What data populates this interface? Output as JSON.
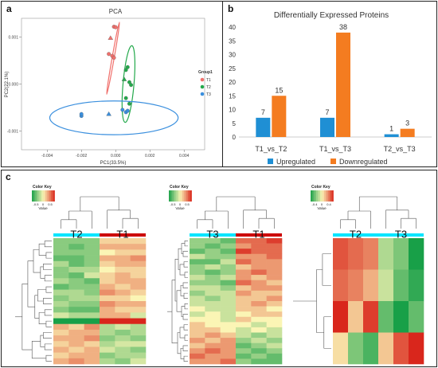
{
  "panel_labels": {
    "a": "a",
    "b": "b",
    "c": "c"
  },
  "colors": {
    "T1": "#f0706c",
    "T2": "#23a94b",
    "T3": "#3a8fde",
    "upregulated": "#1f8fd4",
    "downregulated": "#f47c20",
    "heat_red": "#d9261c",
    "heat_yellow": "#fbf5b5",
    "heat_green": "#18a048",
    "bar_T1": "#cc0000",
    "bar_T2": "#00e5ff",
    "bar_T3": "#00e5ff"
  },
  "chart_data": [
    {
      "type": "scatter",
      "title": "PCA",
      "xlabel": "PC1(33.5%)",
      "ylabel": "PC2(22.1%)",
      "xlim": [
        -0.0055,
        0.0052
      ],
      "ylim": [
        -0.0014,
        0.0014
      ],
      "x_ticks": [
        "-0.004",
        "-0.002",
        "0.000",
        "0.002",
        "0.004"
      ],
      "y_ticks": [
        "0.001",
        "0.000",
        "-0.001"
      ],
      "legend_title": "Group1",
      "legend_position": "right",
      "series": [
        {
          "name": "T1",
          "marker": "circle/triangle",
          "points": [
            [
              -0.0001,
              0.00122
            ],
            [
              0.0,
              0.00121
            ],
            [
              -0.0003,
              0.00098
            ],
            [
              -0.0004,
              0.00064
            ],
            [
              -0.0002,
              0.0006
            ],
            [
              -0.0001,
              0.00056
            ]
          ]
        },
        {
          "name": "T2",
          "marker": "circle/triangle",
          "points": [
            [
              0.0007,
              0.00036
            ],
            [
              0.0006,
              0.0003
            ],
            [
              0.0005,
              0.0001
            ],
            [
              0.0008,
              4e-05
            ],
            [
              0.0009,
              -2e-05
            ],
            [
              0.0006,
              -0.0003
            ],
            [
              0.0008,
              -0.00042
            ]
          ]
        },
        {
          "name": "T3",
          "marker": "circle/triangle",
          "points": [
            [
              -0.002,
              -0.00068
            ],
            [
              -0.002,
              -0.00064
            ],
            [
              -0.0004,
              -0.00064
            ],
            [
              0.0004,
              -0.00055
            ],
            [
              0.0006,
              -0.0006
            ],
            [
              0.0007,
              -0.00057
            ]
          ]
        }
      ],
      "ellipses": [
        {
          "group": "T1",
          "cx": -0.00015,
          "cy": 0.00055,
          "rx": 6e-05,
          "ry": 0.00078,
          "angle_deg": 10
        },
        {
          "group": "T2",
          "cx": 0.00075,
          "cy": 0.0,
          "rx": 0.00032,
          "ry": 0.00082,
          "angle_deg": 5
        },
        {
          "group": "T3",
          "cx": -0.0001,
          "cy": -0.00072,
          "rx": 0.00375,
          "ry": 0.00036,
          "angle_deg": 0
        }
      ]
    },
    {
      "type": "bar",
      "title": "Differentially Expressed Proteins",
      "categories": [
        "T1_vs_T2",
        "T1_vs_T3",
        "T2_vs_T3"
      ],
      "series": [
        {
          "name": "Upregulated",
          "values": [
            7,
            7,
            1
          ]
        },
        {
          "name": "Downregulated",
          "values": [
            15,
            38,
            3
          ]
        }
      ],
      "ylim": [
        0,
        40
      ],
      "y_ticks": [
        0,
        5,
        10,
        15,
        20,
        25,
        30,
        35,
        40
      ],
      "xlabel": "",
      "ylabel": "",
      "legend_position": "bottom"
    },
    {
      "type": "heatmap",
      "color_key": {
        "title": "Color Key",
        "ticks": [
          "-0.5",
          "0",
          "0.5"
        ],
        "label": "Value"
      },
      "group_labels": [
        "T2",
        "T1"
      ],
      "columns": 6,
      "values": [
        [
          -0.3,
          -0.3,
          -0.3,
          0.1,
          0.1,
          0.1
        ],
        [
          -0.3,
          -0.4,
          -0.3,
          0.2,
          0.2,
          0.2
        ],
        [
          -0.3,
          -0.3,
          -0.3,
          0.0,
          0.1,
          0.1
        ],
        [
          -0.4,
          -0.4,
          -0.3,
          0.2,
          0.2,
          0.3
        ],
        [
          -0.2,
          -0.4,
          -0.3,
          0.1,
          0.2,
          0.2
        ],
        [
          -0.3,
          -0.2,
          -0.2,
          0.0,
          0.1,
          0.1
        ],
        [
          -0.3,
          -0.4,
          -0.1,
          0.1,
          0.2,
          0.1
        ],
        [
          -0.2,
          -0.3,
          -0.4,
          0.1,
          0.2,
          0.2
        ],
        [
          -0.4,
          -0.3,
          -0.3,
          0.2,
          0.1,
          0.2
        ],
        [
          -0.2,
          -0.2,
          -0.3,
          0.3,
          0.2,
          0.1
        ],
        [
          -0.3,
          -0.2,
          -0.2,
          0.1,
          0.1,
          0.0
        ],
        [
          -0.2,
          -0.3,
          -0.3,
          0.3,
          0.2,
          0.2
        ],
        [
          -0.3,
          -0.4,
          -0.4,
          0.2,
          0.1,
          0.1
        ],
        [
          -0.1,
          -0.2,
          -0.2,
          0.2,
          0.2,
          -0.1
        ],
        [
          -0.6,
          -0.6,
          -0.6,
          0.6,
          0.6,
          0.6
        ],
        [
          0.2,
          0.1,
          0.3,
          -0.2,
          -0.1,
          -0.2
        ],
        [
          0.1,
          0.2,
          0.2,
          -0.2,
          -0.3,
          -0.2
        ],
        [
          0.2,
          0.2,
          0.3,
          -0.3,
          -0.2,
          -0.3
        ],
        [
          0.1,
          0.2,
          0.1,
          -0.2,
          -0.1,
          -0.1
        ],
        [
          0.2,
          0.1,
          0.2,
          -0.1,
          -0.2,
          -0.3
        ],
        [
          0.1,
          0.2,
          0.2,
          -0.3,
          -0.2,
          -0.2
        ],
        [
          0.2,
          0.3,
          0.2,
          -0.2,
          -0.3,
          -0.1
        ]
      ]
    },
    {
      "type": "heatmap",
      "color_key": {
        "title": "Color Key",
        "ticks": [
          "-0.5",
          "0",
          "0.5"
        ],
        "label": "Value"
      },
      "group_labels": [
        "T3",
        "T1"
      ],
      "columns": 6,
      "values": [
        [
          -0.2,
          -0.2,
          -0.3,
          0.3,
          0.3,
          0.4
        ],
        [
          -0.2,
          -0.3,
          -0.2,
          0.2,
          0.3,
          0.3
        ],
        [
          -0.3,
          -0.2,
          -0.3,
          0.4,
          0.3,
          0.3
        ],
        [
          -0.1,
          -0.2,
          -0.2,
          0.2,
          0.2,
          0.3
        ],
        [
          -0.3,
          -0.3,
          -0.1,
          0.3,
          0.2,
          0.2
        ],
        [
          -0.2,
          -0.1,
          -0.2,
          0.1,
          0.2,
          0.2
        ],
        [
          -0.2,
          -0.3,
          -0.2,
          0.2,
          0.3,
          0.2
        ],
        [
          -0.1,
          -0.2,
          -0.1,
          0.2,
          0.1,
          0.2
        ],
        [
          -0.2,
          -0.2,
          -0.3,
          0.3,
          0.2,
          0.1
        ],
        [
          -0.1,
          -0.1,
          -0.2,
          0.1,
          0.2,
          0.2
        ],
        [
          -0.2,
          -0.1,
          -0.1,
          0.2,
          0.1,
          0.1
        ],
        [
          -0.1,
          -0.2,
          -0.1,
          0.1,
          0.1,
          0.2
        ],
        [
          -0.1,
          -0.1,
          -0.1,
          0.1,
          0.2,
          0.1
        ],
        [
          0.0,
          -0.1,
          -0.1,
          0.1,
          0.1,
          0.0
        ],
        [
          -0.1,
          0.0,
          -0.1,
          0.0,
          0.1,
          0.1
        ],
        [
          0.0,
          0.0,
          -0.1,
          0.1,
          0.0,
          0.0
        ],
        [
          0.1,
          0.0,
          0.0,
          0.0,
          -0.1,
          0.0
        ],
        [
          0.1,
          0.1,
          0.0,
          -0.1,
          0.0,
          -0.1
        ],
        [
          0.1,
          0.2,
          0.1,
          -0.1,
          -0.2,
          -0.1
        ],
        [
          0.2,
          0.1,
          0.2,
          -0.2,
          -0.1,
          -0.2
        ],
        [
          0.1,
          0.2,
          0.2,
          -0.3,
          -0.2,
          -0.1
        ],
        [
          0.2,
          0.3,
          0.2,
          -0.2,
          -0.3,
          -0.2
        ],
        [
          0.3,
          0.2,
          0.2,
          -0.3,
          -0.2,
          -0.3
        ],
        [
          0.2,
          0.2,
          0.3,
          -0.2,
          -0.3,
          -0.3
        ]
      ]
    },
    {
      "type": "heatmap",
      "color_key": {
        "title": "Color Key",
        "ticks": [
          "-0.4",
          "0",
          "0.4"
        ],
        "label": "Value"
      },
      "group_labels": [
        "T2",
        "T3"
      ],
      "columns": 6,
      "values": [
        [
          0.35,
          0.3,
          0.25,
          -0.15,
          -0.25,
          -0.45
        ],
        [
          0.3,
          0.25,
          0.15,
          -0.1,
          -0.3,
          -0.4
        ],
        [
          0.45,
          0.1,
          0.4,
          -0.3,
          -0.45,
          -0.3
        ],
        [
          0.05,
          -0.25,
          -0.35,
          0.1,
          0.35,
          0.45
        ]
      ]
    }
  ]
}
